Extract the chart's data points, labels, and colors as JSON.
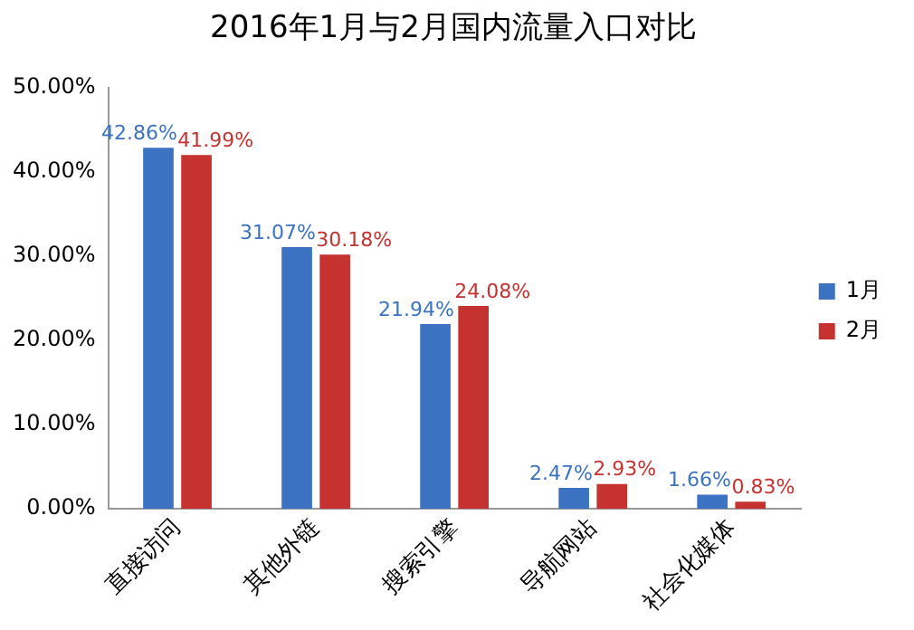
{
  "chart_data": {
    "type": "bar",
    "title": "2016年1月与2月国内流量入口对比",
    "categories": [
      "直接访问",
      "其他外链",
      "搜索引擎",
      "导航网站",
      "社会化媒体"
    ],
    "series": [
      {
        "name": "1月",
        "color": "#3b73c2",
        "values": [
          42.86,
          31.07,
          21.94,
          2.47,
          1.66
        ],
        "value_labels": [
          "42.86%",
          "31.07%",
          "21.94%",
          "2.47%",
          "1.66%"
        ]
      },
      {
        "name": "2月",
        "color": "#c6322f",
        "values": [
          41.99,
          30.18,
          24.08,
          2.93,
          0.83
        ],
        "value_labels": [
          "41.99%",
          "30.18%",
          "24.08%",
          "2.93%",
          "0.83%"
        ]
      }
    ],
    "ylim": [
      0,
      50
    ],
    "yticks": [
      {
        "value": 0,
        "label": "0.00%"
      },
      {
        "value": 10,
        "label": "10.00%"
      },
      {
        "value": 20,
        "label": "20.00%"
      },
      {
        "value": 30,
        "label": "30.00%"
      },
      {
        "value": 40,
        "label": "40.00%"
      },
      {
        "value": 50,
        "label": "50.00%"
      }
    ],
    "grid": false,
    "legend": "right"
  }
}
